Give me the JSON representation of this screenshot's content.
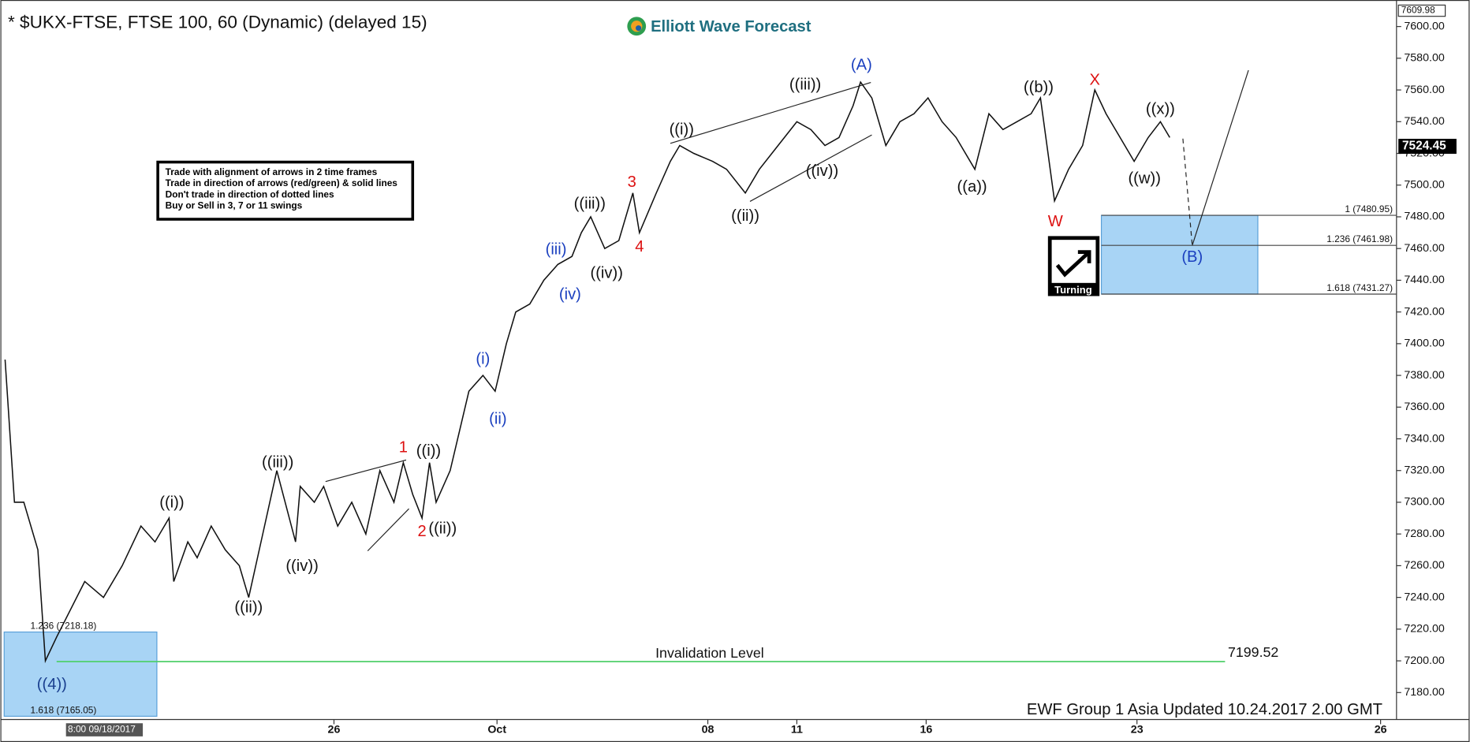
{
  "chart_data": {
    "type": "line",
    "title": "* $UKX-FTSE, FTSE 100, 60 (Dynamic) (delayed 15)",
    "brand": "Elliott Wave Forecast",
    "footer": "EWF Group 1 Asia Updated 10.24.2017 2.00 GMT",
    "start_label": "8:00 09/18/2017",
    "icon_label": "Turning",
    "color": "#111111",
    "x": [
      5,
      15,
      25,
      40,
      48,
      60,
      90,
      110,
      130,
      150,
      165,
      180,
      185,
      200,
      210,
      225,
      240,
      255,
      265,
      280,
      295,
      315,
      320,
      335,
      345,
      360,
      375,
      390,
      405,
      420,
      430,
      440,
      450,
      458,
      465,
      480,
      492,
      500,
      515,
      528,
      540,
      550,
      565,
      580,
      595,
      610,
      620,
      630,
      645,
      660,
      675,
      682,
      700,
      715,
      725,
      740,
      760,
      775,
      795,
      810,
      830,
      850,
      865,
      880,
      895,
      910,
      918,
      930,
      945,
      960,
      975,
      990,
      1005,
      1020,
      1040,
      1055,
      1070,
      1085,
      1100,
      1110,
      1125,
      1140,
      1155,
      1168,
      1180,
      1195,
      1210,
      1225,
      1238,
      1248
    ],
    "values": [
      7390,
      7300,
      7300,
      7270,
      7200,
      7215,
      7250,
      7240,
      7260,
      7285,
      7275,
      7290,
      7250,
      7275,
      7265,
      7285,
      7270,
      7260,
      7240,
      7280,
      7320,
      7275,
      7310,
      7300,
      7310,
      7285,
      7300,
      7280,
      7320,
      7300,
      7325,
      7305,
      7290,
      7325,
      7300,
      7320,
      7350,
      7370,
      7380,
      7370,
      7400,
      7420,
      7425,
      7440,
      7450,
      7455,
      7470,
      7480,
      7460,
      7465,
      7495,
      7470,
      7495,
      7515,
      7525,
      7520,
      7515,
      7510,
      7495,
      7510,
      7525,
      7540,
      7535,
      7525,
      7530,
      7550,
      7565,
      7555,
      7525,
      7540,
      7545,
      7555,
      7540,
      7530,
      7510,
      7545,
      7535,
      7540,
      7545,
      7555,
      7490,
      7510,
      7525,
      7560,
      7545,
      7530,
      7515,
      7530,
      7540,
      7530
    ],
    "xlim": [
      0,
      1490
    ],
    "ylim": [
      7163,
      7612
    ],
    "xticks": [
      {
        "value": 356,
        "label": "26"
      },
      {
        "value": 530,
        "label": "Oct"
      },
      {
        "value": 755,
        "label": "08"
      },
      {
        "value": 850,
        "label": "11"
      },
      {
        "value": 988,
        "label": "16"
      },
      {
        "value": 1213,
        "label": "23"
      },
      {
        "value": 1473,
        "label": "26"
      }
    ],
    "yticks": [
      {
        "value": 7180,
        "label": "7180.00"
      },
      {
        "value": 7200,
        "label": "7200.00"
      },
      {
        "value": 7220,
        "label": "7220.00"
      },
      {
        "value": 7240,
        "label": "7240.00"
      },
      {
        "value": 7260,
        "label": "7260.00"
      },
      {
        "value": 7280,
        "label": "7280.00"
      },
      {
        "value": 7300,
        "label": "7300.00"
      },
      {
        "value": 7320,
        "label": "7320.00"
      },
      {
        "value": 7340,
        "label": "7340.00"
      },
      {
        "value": 7360,
        "label": "7360.00"
      },
      {
        "value": 7380,
        "label": "7380.00"
      },
      {
        "value": 7400,
        "label": "7400.00"
      },
      {
        "value": 7420,
        "label": "7420.00"
      },
      {
        "value": 7440,
        "label": "7440.00"
      },
      {
        "value": 7460,
        "label": "7460.00"
      },
      {
        "value": 7480,
        "label": "7480.00"
      },
      {
        "value": 7500,
        "label": "7500.00"
      },
      {
        "value": 7520,
        "label": "7520.00"
      },
      {
        "value": 7540,
        "label": "7540.00"
      },
      {
        "value": 7560,
        "label": "7560.00"
      },
      {
        "value": 7580,
        "label": "7580.00"
      },
      {
        "value": 7600,
        "label": "7600.00"
      }
    ],
    "high_label": 7609.98,
    "last_price": 7524.45,
    "invalidation": {
      "label": "Invalidation Level",
      "value": 7199.52,
      "color": "#4fcf6a"
    },
    "upper_zone": [
      {
        "value": 7480.95,
        "label": "1 (7480.95)"
      },
      {
        "value": 7461.98,
        "label": "1.236 (7461.98)"
      },
      {
        "value": 7431.27,
        "label": "1.618 (7431.27)"
      }
    ],
    "lower_zone": [
      {
        "value": 7218.18,
        "label": "1.236 (7218.18)"
      },
      {
        "value": 7165.05,
        "label": "1.618 (7165.05)"
      }
    ],
    "zone_color": "#a8d4f5",
    "info_box": {
      "lines": [
        "Trade with alignment of arrows in 2 time frames",
        "Trade in direction of arrows (red/green) & solid lines",
        "Don't trade in direction of dotted lines",
        "Buy or Sell in 3, 7 or 11 swings"
      ]
    },
    "labels": [
      {
        "text": "((i))",
        "color": "#111111"
      },
      {
        "text": "((ii))",
        "color": "#111111"
      },
      {
        "text": "((iii))",
        "color": "#111111"
      },
      {
        "text": "((iv))",
        "color": "#111111"
      },
      {
        "text": "1",
        "color": "#dd1111"
      },
      {
        "text": "2",
        "color": "#dd1111"
      },
      {
        "text": "((i))",
        "color": "#111111"
      },
      {
        "text": "((ii))",
        "color": "#111111"
      },
      {
        "text": "(i)",
        "color": "#1a3fbf"
      },
      {
        "text": "(ii)",
        "color": "#1a3fbf"
      },
      {
        "text": "(iii)",
        "color": "#1a3fbf"
      },
      {
        "text": "(iv)",
        "color": "#1a3fbf"
      },
      {
        "text": "((iii))",
        "color": "#111111"
      },
      {
        "text": "((iv))",
        "color": "#111111"
      },
      {
        "text": "3",
        "color": "#dd1111"
      },
      {
        "text": "4",
        "color": "#dd1111"
      },
      {
        "text": "((i))",
        "color": "#111111"
      },
      {
        "text": "((ii))",
        "color": "#111111"
      },
      {
        "text": "((iii))",
        "color": "#111111"
      },
      {
        "text": "((iv))",
        "color": "#111111"
      },
      {
        "text": "(A)",
        "color": "#1a3fbf"
      },
      {
        "text": "((a))",
        "color": "#111111"
      },
      {
        "text": "((b))",
        "color": "#111111"
      },
      {
        "text": "W",
        "color": "#dd1111"
      },
      {
        "text": "X",
        "color": "#dd1111"
      },
      {
        "text": "((w))",
        "color": "#111111"
      },
      {
        "text": "((x))",
        "color": "#111111"
      },
      {
        "text": "(B)",
        "color": "#1a3fbf"
      },
      {
        "text": "((4))",
        "color": "#1a3f8f"
      }
    ]
  }
}
